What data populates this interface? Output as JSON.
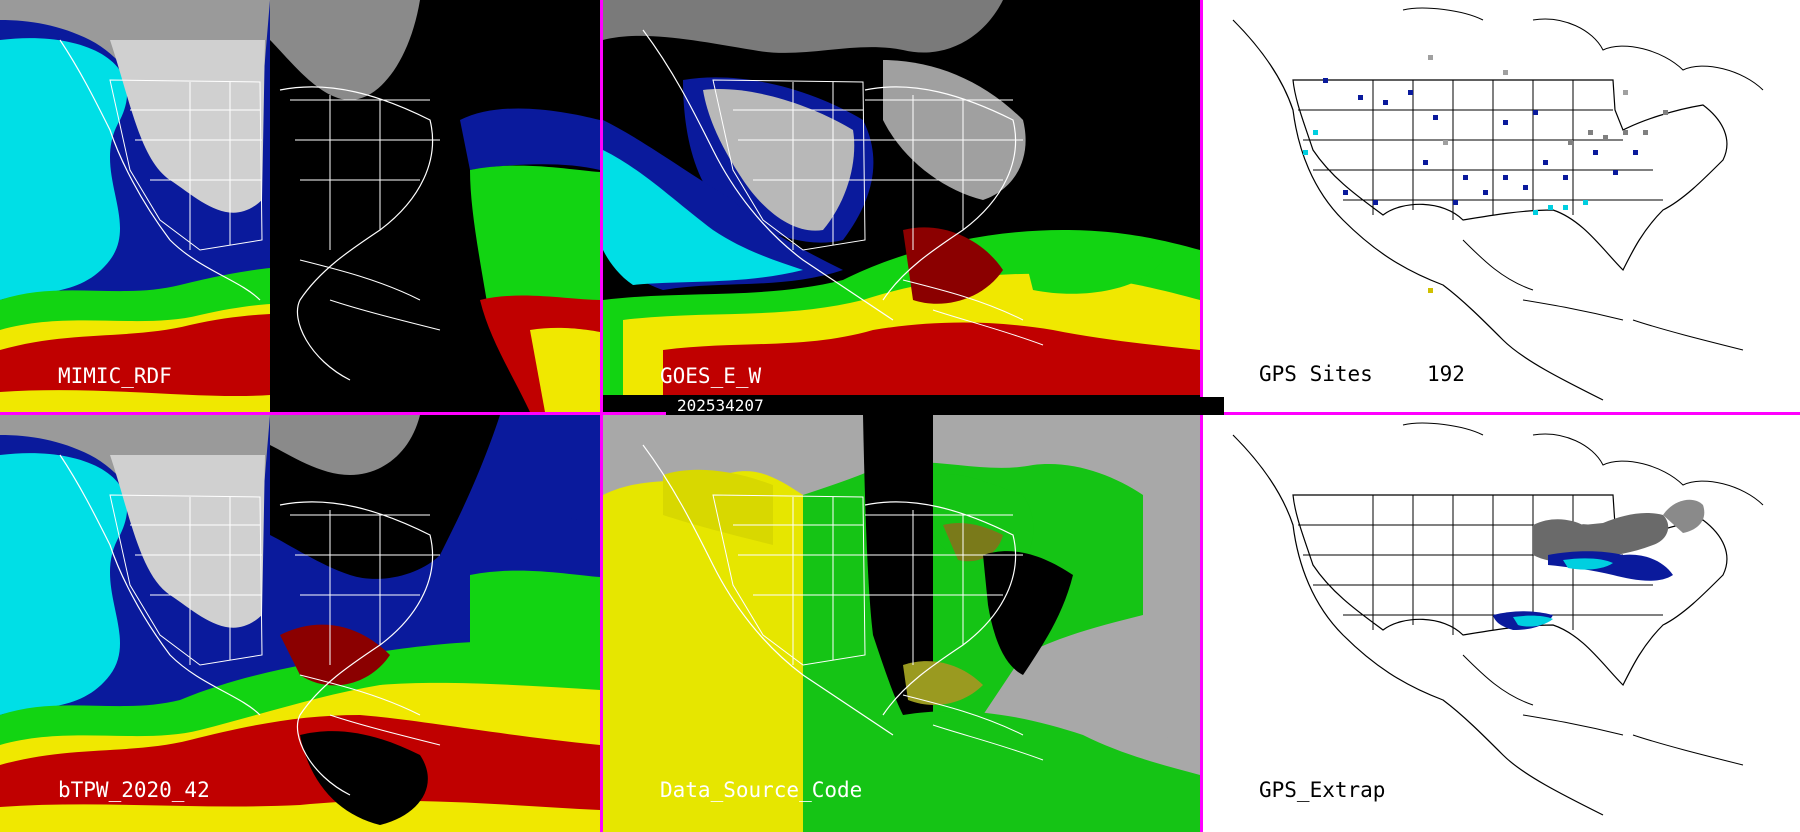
{
  "panels": [
    {
      "id": "mimic",
      "label": "MIMIC_RDF"
    },
    {
      "id": "goes",
      "label": "GOES_E_W"
    },
    {
      "id": "gps",
      "label": "GPS Sites",
      "count": "192"
    },
    {
      "id": "btpw",
      "label": "bTPW_2020_42"
    },
    {
      "id": "dsc",
      "label": "Data_Source_Code"
    },
    {
      "id": "extrap",
      "label": "GPS_Extrap"
    }
  ],
  "timestamp": "202534207",
  "colors": {
    "separator": "#ff00ff",
    "cyan": "#00e0e8",
    "blue": "#0a1a9c",
    "green": "#12d412",
    "yellow": "#f0e800",
    "red": "#c00000",
    "gray": "#a8a8a8",
    "code_yellow": "#e6e600",
    "code_green": "#15c415"
  }
}
